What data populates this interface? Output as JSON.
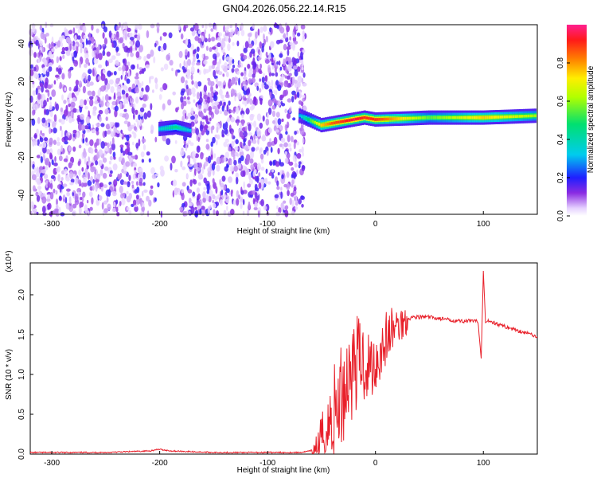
{
  "title": "GN04.2026.056.22.14.R15",
  "chart_data": [
    {
      "type": "heatmap",
      "xlabel": "Height of straight line (km)",
      "ylabel": "Frequency (Hz)",
      "xlim": [
        -320,
        150
      ],
      "ylim": [
        -50,
        50
      ],
      "x_ticks": [
        -300,
        -200,
        -100,
        0,
        100
      ],
      "y_ticks": [
        -40,
        -20,
        0,
        20,
        40
      ],
      "colorbar": {
        "label": "Normalized spectral amplitude",
        "range": [
          0,
          1
        ],
        "ticks": [
          0.0,
          0.2,
          0.4,
          0.6,
          0.8
        ]
      },
      "ridge": [
        {
          "x": -200,
          "freq": -5,
          "amp": 0.35
        },
        {
          "x": -185,
          "freq": -4,
          "amp": 0.45
        },
        {
          "x": -170,
          "freq": -6,
          "amp": 0.3
        },
        {
          "x": -70,
          "freq": 2,
          "amp": 0.3
        },
        {
          "x": -50,
          "freq": -3,
          "amp": 0.75
        },
        {
          "x": -40,
          "freq": -2,
          "amp": 0.85
        },
        {
          "x": -30,
          "freq": -1,
          "amp": 0.9
        },
        {
          "x": -20,
          "freq": 0,
          "amp": 0.95
        },
        {
          "x": -10,
          "freq": 1,
          "amp": 0.9
        },
        {
          "x": 0,
          "freq": 0,
          "amp": 0.9
        },
        {
          "x": 50,
          "freq": 1,
          "amp": 0.55
        },
        {
          "x": 100,
          "freq": 1,
          "amp": 0.75
        },
        {
          "x": 150,
          "freq": 2,
          "amp": 0.6
        }
      ]
    },
    {
      "type": "line",
      "xlabel": "Height of straight line (km)",
      "ylabel": "SNR (10 * v/v)",
      "y_multiplier": "(x10⁴)",
      "xlim": [
        -320,
        150
      ],
      "ylim": [
        0,
        2.4
      ],
      "x_ticks": [
        -300,
        -200,
        -100,
        0,
        100
      ],
      "y_ticks": [
        0.0,
        0.5,
        1.0,
        1.5,
        2.0
      ],
      "series": [
        {
          "color": "#e8202a",
          "x": [
            -320,
            -250,
            -210,
            -200,
            -190,
            -150,
            -100,
            -70,
            -55,
            -50,
            -45,
            -40,
            -35,
            -30,
            -25,
            -20,
            -15,
            -10,
            -5,
            0,
            5,
            10,
            15,
            20,
            25,
            30,
            35,
            40,
            50,
            60,
            70,
            80,
            90,
            95,
            98,
            100,
            102,
            105,
            110,
            120,
            130,
            140,
            150
          ],
          "y": [
            0.02,
            0.02,
            0.04,
            0.06,
            0.04,
            0.02,
            0.02,
            0.02,
            0.05,
            0.15,
            0.3,
            0.45,
            0.6,
            0.8,
            1.0,
            1.1,
            1.2,
            1.15,
            1.1,
            1.15,
            1.3,
            1.45,
            1.55,
            1.6,
            1.65,
            1.7,
            1.72,
            1.72,
            1.72,
            1.7,
            1.68,
            1.67,
            1.67,
            1.66,
            1.2,
            2.3,
            1.65,
            1.68,
            1.65,
            1.6,
            1.56,
            1.52,
            1.48
          ]
        }
      ]
    }
  ]
}
